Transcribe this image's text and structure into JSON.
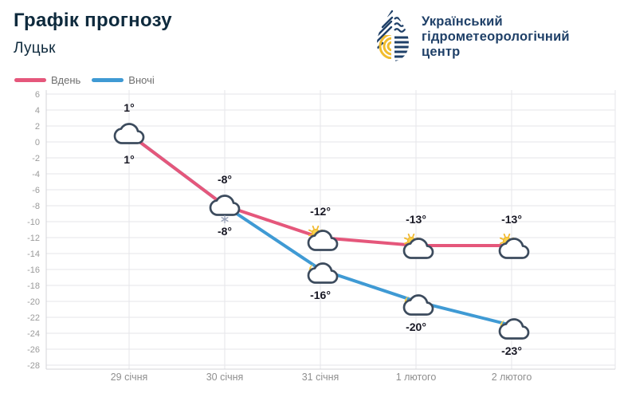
{
  "header": {
    "title": "Графік прогнозу",
    "city": "Луцьк"
  },
  "logo": {
    "org_line1": "Український",
    "org_line2": "гідрометеорологічний",
    "org_line3": "центр"
  },
  "colors": {
    "day_line": "#e5577b",
    "night_line": "#3f9ad4",
    "title_text": "#0e2a3d",
    "logo_navy": "#1f4068",
    "logo_yellow": "#f1bd2f",
    "cloud_stroke": "#3c4b5d",
    "sun_yellow": "#f5c63c",
    "grid_line": "#e6e6ea",
    "axis_line": "#d4d4da",
    "y_tick_label": "#9b9b9b",
    "x_tick_label": "#8f8f8f",
    "temp_label": "#181824",
    "snowflake": "#98a2b8"
  },
  "chart_data": {
    "type": "line",
    "title": "Графік прогнозу",
    "subtitle": "Луцьк",
    "categories": [
      "29 січня",
      "30 січня",
      "31 січня",
      "1 лютого",
      "2 лютого"
    ],
    "series": [
      {
        "name": "Вдень",
        "color": "#e5577b",
        "values": [
          1,
          -8,
          -12,
          -13,
          -13
        ],
        "point_labels": [
          "1°",
          "-8°",
          "-12°",
          "-13°",
          "-13°"
        ],
        "icons": [
          "cloud",
          "cloud-snow",
          "sun-cloud",
          "sun-cloud",
          "sun-cloud"
        ]
      },
      {
        "name": "Вночі",
        "color": "#3f9ad4",
        "values": [
          1,
          -8,
          -16,
          -20,
          -23
        ],
        "point_labels": [
          "1°",
          "-8°",
          "-16°",
          "-20°",
          "-23°"
        ],
        "icons": [
          "cloud",
          "cloud-snow",
          "moon-cloud",
          "moon-cloud",
          "moon-cloud"
        ]
      }
    ],
    "ylim": [
      -28,
      6
    ],
    "ytick_step": 2,
    "grid": true,
    "legend_position": "top-left"
  }
}
